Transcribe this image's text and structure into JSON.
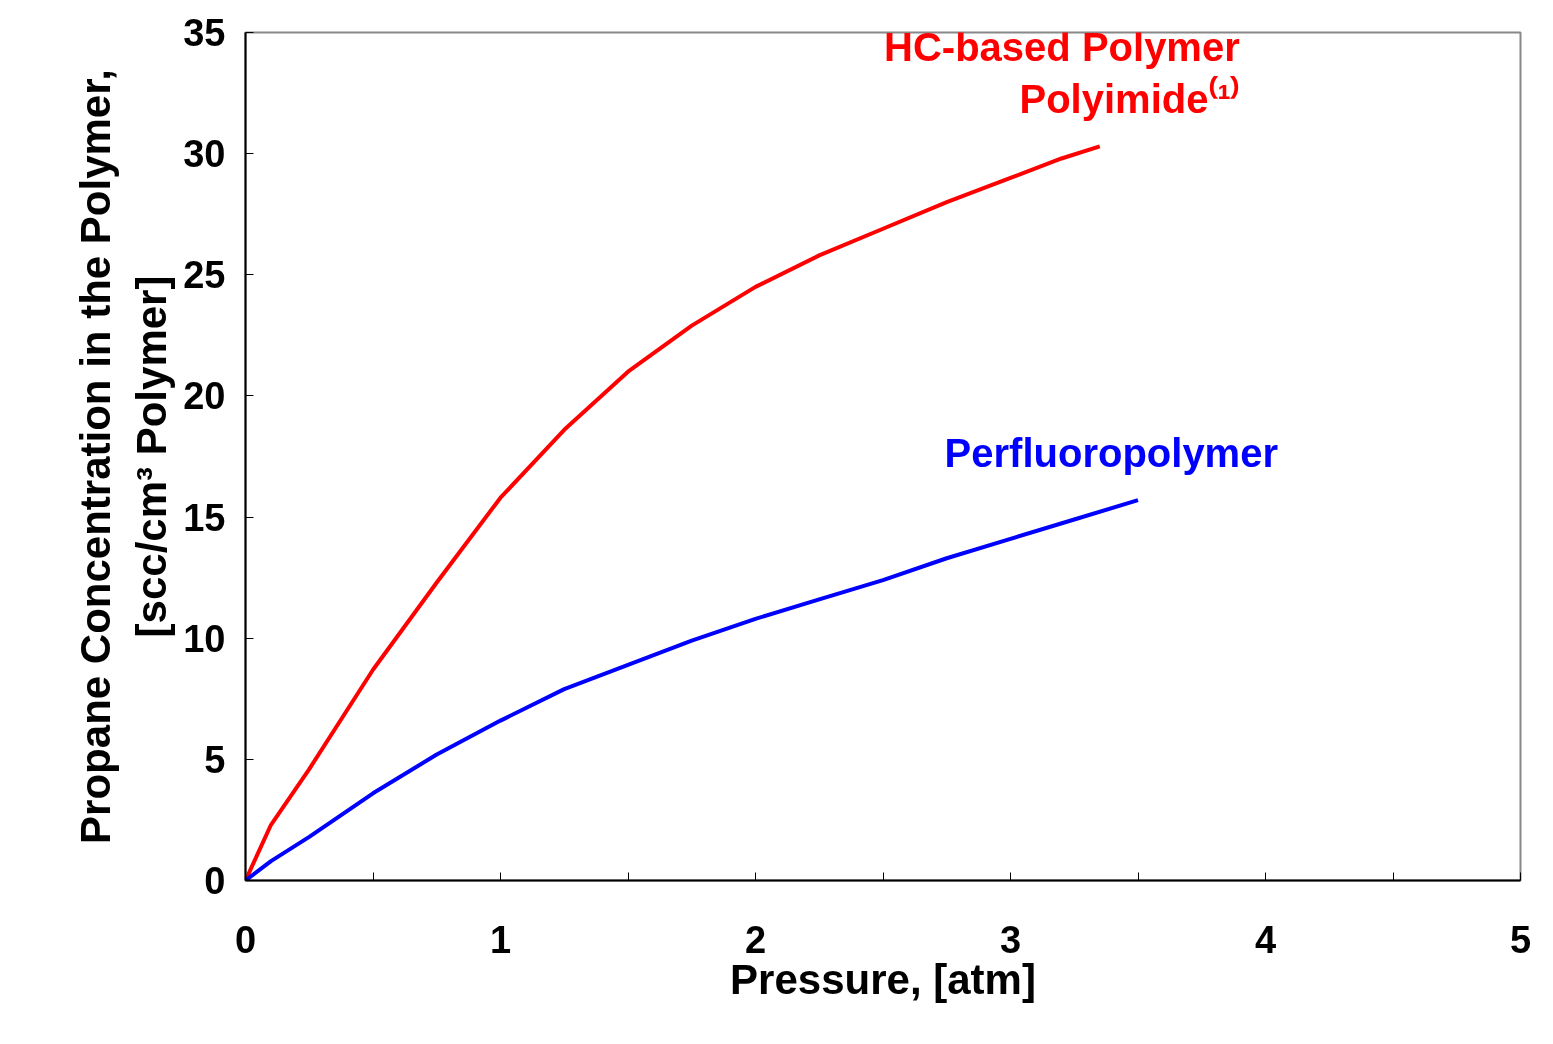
{
  "chart_data": {
    "type": "line",
    "xlabel": "Pressure, [atm]",
    "ylabel": "Propane Concentration in the Polymer,\n[scc/cm³ Polymer]",
    "xlim": [
      0,
      5
    ],
    "ylim": [
      0,
      35
    ],
    "xticks": [
      0,
      {
        "value": 0.5,
        "label": null
      },
      1,
      {
        "value": 1.5,
        "label": null
      },
      2,
      {
        "value": 2.5,
        "label": null
      },
      3,
      {
        "value": 3.5,
        "label": null
      },
      4,
      {
        "value": 4.5,
        "label": null
      },
      5
    ],
    "yticks": [
      0,
      5,
      10,
      15,
      20,
      25,
      30,
      35
    ],
    "grid": false,
    "marker": "none",
    "line_style": "solid",
    "series": [
      {
        "name": "HC-based Polymer\nPolyimide⁽¹⁾",
        "color": "#ff0000",
        "x": [
          0,
          0.1,
          0.25,
          0.5,
          0.75,
          1,
          1.25,
          1.5,
          1.75,
          2,
          2.25,
          2.5,
          2.75,
          3,
          3.2,
          3.35
        ],
        "values": [
          0,
          2.3,
          4.6,
          8.7,
          12.3,
          15.8,
          18.6,
          21.0,
          22.9,
          24.5,
          25.8,
          26.9,
          28.0,
          29.0,
          29.8,
          30.3
        ]
      },
      {
        "name": "Perfluoropolymer",
        "color": "#0000ff",
        "x": [
          0,
          0.1,
          0.25,
          0.5,
          0.75,
          1,
          1.25,
          1.5,
          1.75,
          2,
          2.25,
          2.5,
          2.75,
          3,
          3.25,
          3.5
        ],
        "values": [
          0,
          0.8,
          1.8,
          3.6,
          5.2,
          6.6,
          7.9,
          8.9,
          9.9,
          10.8,
          11.6,
          12.4,
          13.3,
          14.1,
          14.9,
          15.7
        ]
      }
    ]
  }
}
